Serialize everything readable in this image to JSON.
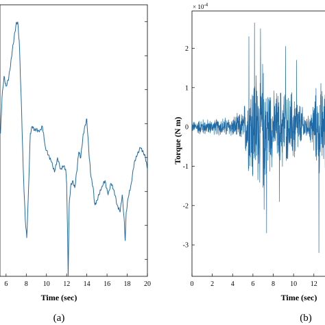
{
  "panel_labels": {
    "a": "(a)",
    "b": "(b)"
  },
  "chart_data": [
    {
      "type": "line",
      "panel": "(a)",
      "xlabel": "Time (sec)",
      "ylabel": "",
      "xlim": [
        5.4,
        20
      ],
      "ylim": [
        -0.95,
        0.95
      ],
      "xticks": [
        6,
        8,
        10,
        12,
        14,
        16,
        18,
        20
      ],
      "xtick_labels": [
        "6",
        "8",
        "10",
        "12",
        "14",
        "16",
        "18",
        "20"
      ],
      "grid": false,
      "color": "#1f6aa5",
      "series": [
        {
          "x": [
            5.45,
            5.6,
            5.8,
            6.0,
            6.2,
            6.4,
            6.6,
            6.8,
            7.0,
            7.15,
            7.3,
            7.5,
            7.7,
            7.9,
            8.05,
            8.2,
            8.4,
            8.6,
            8.8,
            9.0,
            9.3,
            9.6,
            9.9,
            10.2,
            10.5,
            10.8,
            11.1,
            11.4,
            11.7,
            11.9,
            12.0,
            12.08,
            12.15,
            12.25,
            12.4,
            12.6,
            12.8,
            13.0,
            13.2,
            13.4,
            13.6,
            13.8,
            14.0,
            14.2,
            14.4,
            14.6,
            14.8,
            15.0,
            15.2,
            15.5,
            15.8,
            16.1,
            16.4,
            16.7,
            17.0,
            17.3,
            17.5,
            17.7,
            17.8,
            17.9,
            18.1,
            18.4,
            18.7,
            19.0,
            19.3,
            19.6,
            19.8,
            20.0
          ],
          "y": [
            0.05,
            0.3,
            0.45,
            0.38,
            0.42,
            0.5,
            0.62,
            0.72,
            0.82,
            0.83,
            0.7,
            0.3,
            -0.2,
            -0.55,
            -0.68,
            -0.4,
            0.05,
            0.1,
            0.07,
            0.08,
            0.06,
            0.1,
            -0.05,
            -0.1,
            -0.15,
            -0.22,
            -0.12,
            -0.2,
            -0.18,
            -0.2,
            -0.3,
            -0.6,
            -0.95,
            -0.45,
            -0.32,
            -0.28,
            -0.33,
            -0.22,
            -0.08,
            -0.12,
            0.02,
            0.1,
            0.15,
            -0.08,
            -0.25,
            -0.32,
            -0.45,
            -0.42,
            -0.38,
            -0.32,
            -0.28,
            -0.38,
            -0.3,
            -0.35,
            -0.45,
            -0.5,
            -0.38,
            -0.55,
            -0.7,
            -0.5,
            -0.4,
            -0.3,
            -0.15,
            -0.1,
            -0.05,
            -0.08,
            -0.12,
            -0.2
          ]
        }
      ]
    },
    {
      "type": "line",
      "panel": "(b)",
      "xlabel": "Time (sec)",
      "ylabel": "Torque (N m)",
      "axis_exponent": "× 10",
      "axis_exponent_power": "-4",
      "xlim": [
        0,
        13.5
      ],
      "ylim": [
        -3.8,
        2.95
      ],
      "xticks": [
        0,
        2,
        4,
        6,
        8,
        10,
        12
      ],
      "xtick_labels": [
        "0",
        "2",
        "4",
        "6",
        "8",
        "10",
        "12"
      ],
      "yticks": [
        -3,
        -2,
        -1,
        0,
        1,
        2
      ],
      "ytick_labels": [
        "-3",
        "-2",
        "-1",
        "0",
        "1",
        "2"
      ],
      "grid": false,
      "color": "#1f6aa5",
      "series": [
        {
          "sampling": "noise",
          "points": 900,
          "envelope": {
            "t": [
              0,
              1,
              2,
              3,
              4,
              5,
              5.5,
              6,
              6.5,
              7,
              7.5,
              8,
              8.5,
              9,
              9.5,
              10,
              10.5,
              11,
              11.5,
              12,
              12.5,
              13.5
            ],
            "amp": [
              0.15,
              0.25,
              0.2,
              0.28,
              0.3,
              0.45,
              1.2,
              1.8,
              1.7,
              2.0,
              1.5,
              1.0,
              1.1,
              1.3,
              0.9,
              1.2,
              0.8,
              0.5,
              0.3,
              0.9,
              1.4,
              1.0
            ]
          },
          "peaks": [
            {
              "x": 6.15,
              "y": 2.65
            },
            {
              "x": 5.6,
              "y": 2.3
            },
            {
              "x": 6.75,
              "y": 2.5
            },
            {
              "x": 7.35,
              "y": -2.7
            },
            {
              "x": 7.1,
              "y": -2.1
            },
            {
              "x": 9.2,
              "y": 2.05
            },
            {
              "x": 12.5,
              "y": -3.2
            },
            {
              "x": 10.3,
              "y": 1.7
            },
            {
              "x": 8.6,
              "y": -1.9
            }
          ]
        }
      ]
    }
  ]
}
